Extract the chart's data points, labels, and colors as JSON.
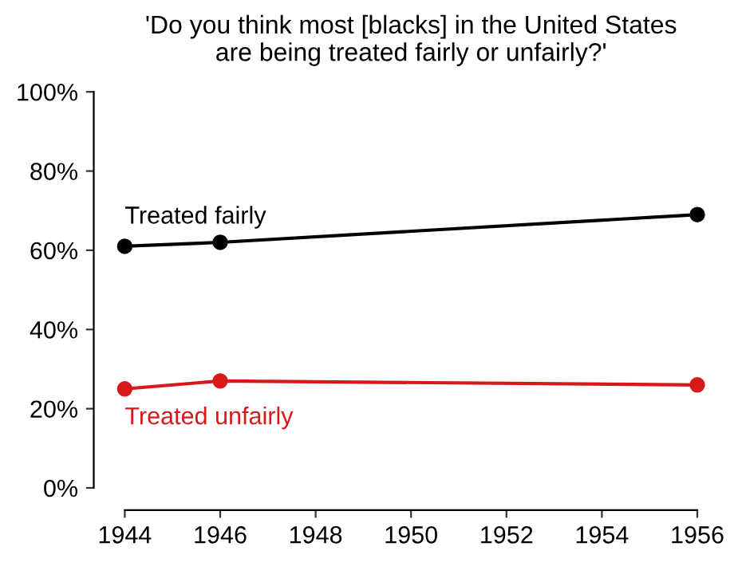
{
  "chart_data": {
    "type": "line",
    "title": "'Do you think most [blacks] in the United States\nare being treated fairly or unfairly?'",
    "x": [
      1944,
      1946,
      1956
    ],
    "series": [
      {
        "name": "Treated fairly",
        "color": "#000000",
        "values": [
          61,
          62,
          69
        ]
      },
      {
        "name": "Treated unfairly",
        "color": "#d7191c",
        "values": [
          25,
          27,
          26
        ]
      }
    ],
    "xlim": [
      1944,
      1956
    ],
    "xticks": [
      1944,
      1946,
      1948,
      1950,
      1952,
      1954,
      1956
    ],
    "ylim": [
      0,
      100
    ],
    "yticks": [
      {
        "value": 0,
        "label": "0%"
      },
      {
        "value": 20,
        "label": "20%"
      },
      {
        "value": 40,
        "label": "40%"
      },
      {
        "value": 60,
        "label": "60%"
      },
      {
        "value": 80,
        "label": "80%"
      },
      {
        "value": 100,
        "label": "100%"
      }
    ],
    "marker": "circle",
    "line_style": "solid",
    "grid": false,
    "legend": false
  }
}
